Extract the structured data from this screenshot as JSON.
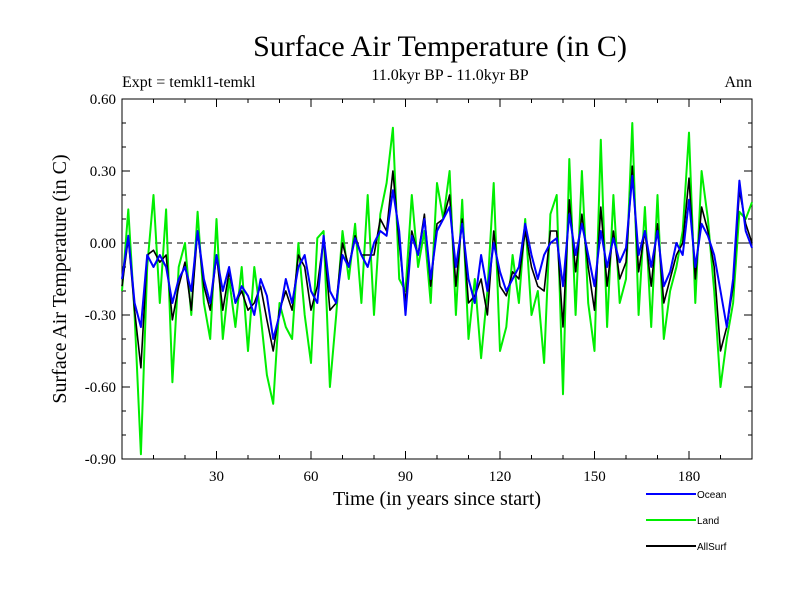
{
  "chart_data": {
    "type": "line",
    "title": "Surface Air Temperature (in C)",
    "subtitle": "11.0kyr BP - 11.0kyr BP",
    "left_label": "Expt = temkl1-temkl",
    "right_label": "Ann",
    "xlabel": "Time (in years since start)",
    "ylabel": "Surface Air Temperature (in C)",
    "xlim": [
      0,
      200
    ],
    "ylim": [
      -0.9,
      0.6
    ],
    "xticks": [
      30,
      60,
      90,
      120,
      150,
      180
    ],
    "xtick_labels": [
      "30",
      "60",
      "90",
      "120",
      "150",
      "180"
    ],
    "yticks": [
      0.6,
      0.3,
      0.0,
      -0.3,
      -0.6,
      -0.9
    ],
    "ytick_labels": [
      "0.60",
      "0.30",
      "0.00",
      "-0.30",
      "-0.60",
      "-0.90"
    ],
    "zero_line": 0.0,
    "legend": [
      {
        "name": "Ocean",
        "color": "#0000ff"
      },
      {
        "name": "Land",
        "color": "#00ee00"
      },
      {
        "name": "AllSurf",
        "color": "#000000"
      }
    ],
    "x": [
      0,
      2,
      4,
      6,
      8,
      10,
      12,
      14,
      16,
      18,
      20,
      22,
      24,
      26,
      28,
      30,
      32,
      34,
      36,
      38,
      40,
      42,
      44,
      46,
      48,
      50,
      52,
      54,
      56,
      58,
      60,
      62,
      64,
      66,
      68,
      70,
      72,
      74,
      76,
      78,
      80,
      82,
      84,
      86,
      88,
      90,
      92,
      94,
      96,
      98,
      100,
      102,
      104,
      106,
      108,
      110,
      112,
      114,
      116,
      118,
      120,
      122,
      124,
      126,
      128,
      130,
      132,
      134,
      136,
      138,
      140,
      142,
      144,
      146,
      148,
      150,
      152,
      154,
      156,
      158,
      160,
      162,
      164,
      166,
      168,
      170,
      172,
      174,
      176,
      178,
      180,
      182,
      184,
      186,
      188,
      190,
      192,
      194,
      196,
      198,
      200
    ],
    "series": [
      {
        "name": "Ocean",
        "color": "#0000ff",
        "values": [
          -0.15,
          0.03,
          -0.25,
          -0.35,
          -0.05,
          -0.1,
          -0.05,
          -0.1,
          -0.25,
          -0.15,
          -0.1,
          -0.2,
          0.05,
          -0.15,
          -0.25,
          -0.05,
          -0.2,
          -0.1,
          -0.25,
          -0.18,
          -0.22,
          -0.3,
          -0.15,
          -0.22,
          -0.4,
          -0.3,
          -0.15,
          -0.25,
          -0.1,
          -0.05,
          -0.2,
          -0.25,
          0.03,
          -0.2,
          -0.25,
          -0.05,
          -0.1,
          0.02,
          -0.05,
          -0.1,
          0.0,
          0.05,
          0.03,
          0.22,
          0.05,
          -0.3,
          0.03,
          -0.05,
          0.1,
          -0.15,
          0.05,
          0.1,
          0.15,
          -0.1,
          0.08,
          -0.15,
          -0.25,
          -0.05,
          -0.2,
          0.0,
          -0.12,
          -0.2,
          -0.15,
          -0.1,
          0.08,
          -0.05,
          -0.15,
          -0.05,
          0.0,
          0.02,
          -0.18,
          0.12,
          -0.05,
          0.08,
          -0.05,
          -0.18,
          0.05,
          -0.1,
          0.02,
          -0.08,
          -0.02,
          0.28,
          -0.05,
          0.05,
          -0.1,
          0.05,
          -0.18,
          -0.12,
          0.0,
          -0.05,
          0.18,
          -0.1,
          0.08,
          0.03,
          -0.05,
          -0.2,
          -0.35,
          -0.15,
          0.26,
          0.05,
          -0.02
        ]
      },
      {
        "name": "Land",
        "color": "#00ee00",
        "values": [
          -0.2,
          0.14,
          -0.3,
          -0.88,
          -0.1,
          0.2,
          -0.25,
          0.14,
          -0.58,
          -0.1,
          0.0,
          -0.3,
          0.13,
          -0.25,
          -0.4,
          0.1,
          -0.4,
          -0.15,
          -0.35,
          -0.1,
          -0.45,
          -0.1,
          -0.3,
          -0.55,
          -0.67,
          -0.25,
          -0.35,
          -0.4,
          0.0,
          -0.3,
          -0.5,
          0.02,
          0.05,
          -0.6,
          -0.3,
          0.05,
          -0.15,
          0.08,
          -0.25,
          0.2,
          -0.3,
          0.12,
          0.25,
          0.48,
          -0.15,
          -0.2,
          0.2,
          -0.1,
          0.05,
          -0.25,
          0.25,
          0.1,
          0.3,
          -0.3,
          0.18,
          -0.4,
          -0.15,
          -0.48,
          -0.2,
          0.25,
          -0.45,
          -0.35,
          -0.05,
          -0.25,
          0.1,
          -0.3,
          -0.2,
          -0.5,
          0.12,
          0.2,
          -0.63,
          0.35,
          -0.3,
          0.3,
          -0.25,
          -0.45,
          0.43,
          -0.35,
          0.2,
          -0.25,
          -0.15,
          0.5,
          -0.3,
          0.15,
          -0.35,
          0.2,
          -0.4,
          -0.2,
          -0.1,
          0.05,
          0.46,
          -0.25,
          0.3,
          0.1,
          -0.2,
          -0.6,
          -0.4,
          -0.25,
          0.13,
          0.1,
          0.17
        ]
      },
      {
        "name": "AllSurf",
        "color": "#000000",
        "values": [
          -0.18,
          0.02,
          -0.28,
          -0.52,
          -0.05,
          -0.03,
          -0.08,
          -0.05,
          -0.32,
          -0.18,
          -0.08,
          -0.28,
          0.05,
          -0.18,
          -0.28,
          -0.05,
          -0.28,
          -0.12,
          -0.25,
          -0.2,
          -0.28,
          -0.25,
          -0.18,
          -0.32,
          -0.45,
          -0.28,
          -0.2,
          -0.28,
          -0.05,
          -0.1,
          -0.28,
          -0.18,
          0.02,
          -0.28,
          -0.25,
          0.0,
          -0.1,
          0.03,
          -0.05,
          -0.05,
          -0.05,
          0.1,
          0.05,
          0.3,
          0.0,
          -0.25,
          0.05,
          -0.05,
          0.12,
          -0.18,
          0.08,
          0.1,
          0.2,
          -0.18,
          0.1,
          -0.25,
          -0.22,
          -0.15,
          -0.3,
          0.05,
          -0.18,
          -0.22,
          -0.12,
          -0.15,
          0.05,
          -0.1,
          -0.18,
          -0.2,
          0.05,
          0.05,
          -0.35,
          0.18,
          -0.12,
          0.12,
          -0.1,
          -0.28,
          0.15,
          -0.18,
          0.05,
          -0.15,
          -0.08,
          0.32,
          -0.12,
          0.05,
          -0.18,
          0.08,
          -0.25,
          -0.15,
          -0.05,
          0.0,
          0.27,
          -0.15,
          0.15,
          0.05,
          -0.1,
          -0.45,
          -0.35,
          -0.18,
          0.22,
          0.08,
          0.0
        ]
      }
    ]
  }
}
